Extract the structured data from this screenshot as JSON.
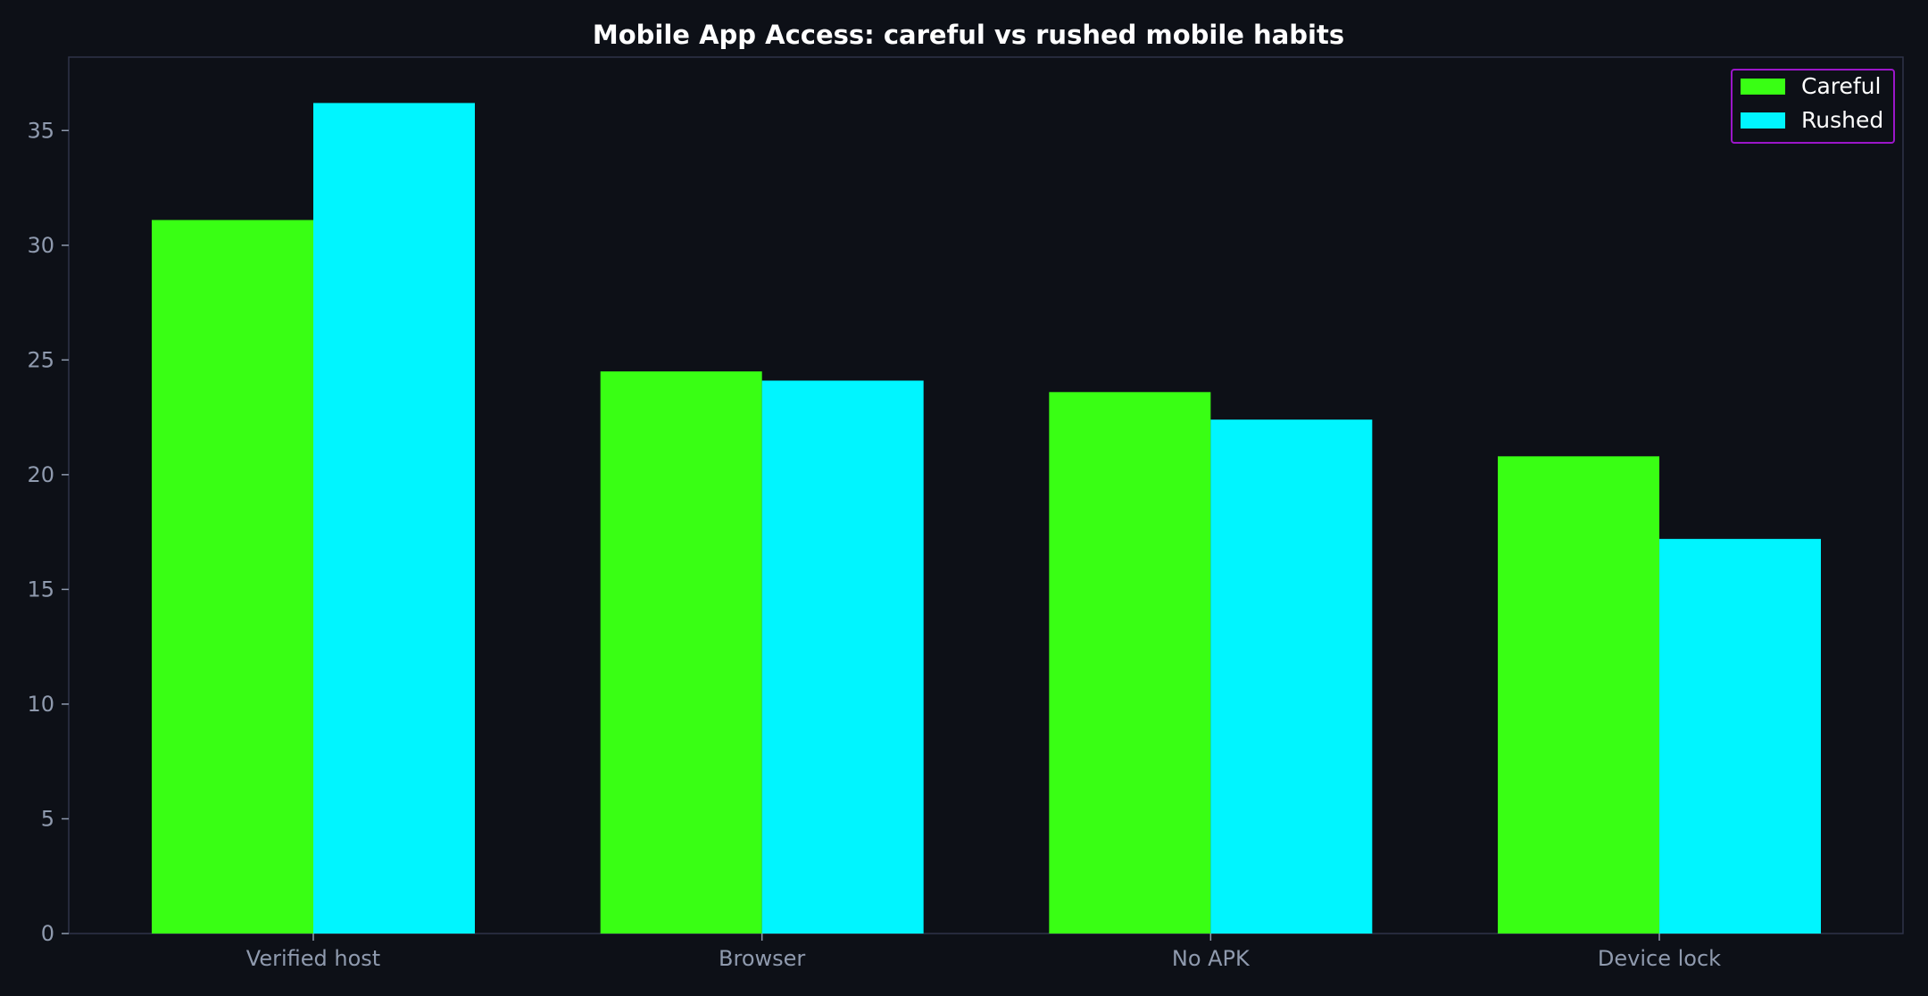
{
  "colors": {
    "background": "#0d1017",
    "plot_frame": "#2e3348",
    "tick_text": "#8f9aae",
    "title_text": "#ffffff",
    "legend_border": "#9b16c9",
    "legend_background": "#0d1017"
  },
  "chart_data": {
    "type": "bar",
    "title": "Mobile App Access: careful vs rushed mobile habits",
    "xlabel": "",
    "ylabel": "",
    "categories": [
      "Verified host",
      "Browser",
      "No APK",
      "Device lock"
    ],
    "series": [
      {
        "name": "Careful",
        "color": "#39ff14",
        "values": [
          31.1,
          24.5,
          23.6,
          20.8
        ]
      },
      {
        "name": "Rushed",
        "color": "#00f5ff",
        "values": [
          36.2,
          24.1,
          22.4,
          17.2
        ]
      }
    ],
    "ylim": [
      0,
      38.2
    ],
    "yticks": [
      0,
      5,
      10,
      15,
      20,
      25,
      30,
      35
    ],
    "grid": false,
    "legend_position": "top-right"
  }
}
